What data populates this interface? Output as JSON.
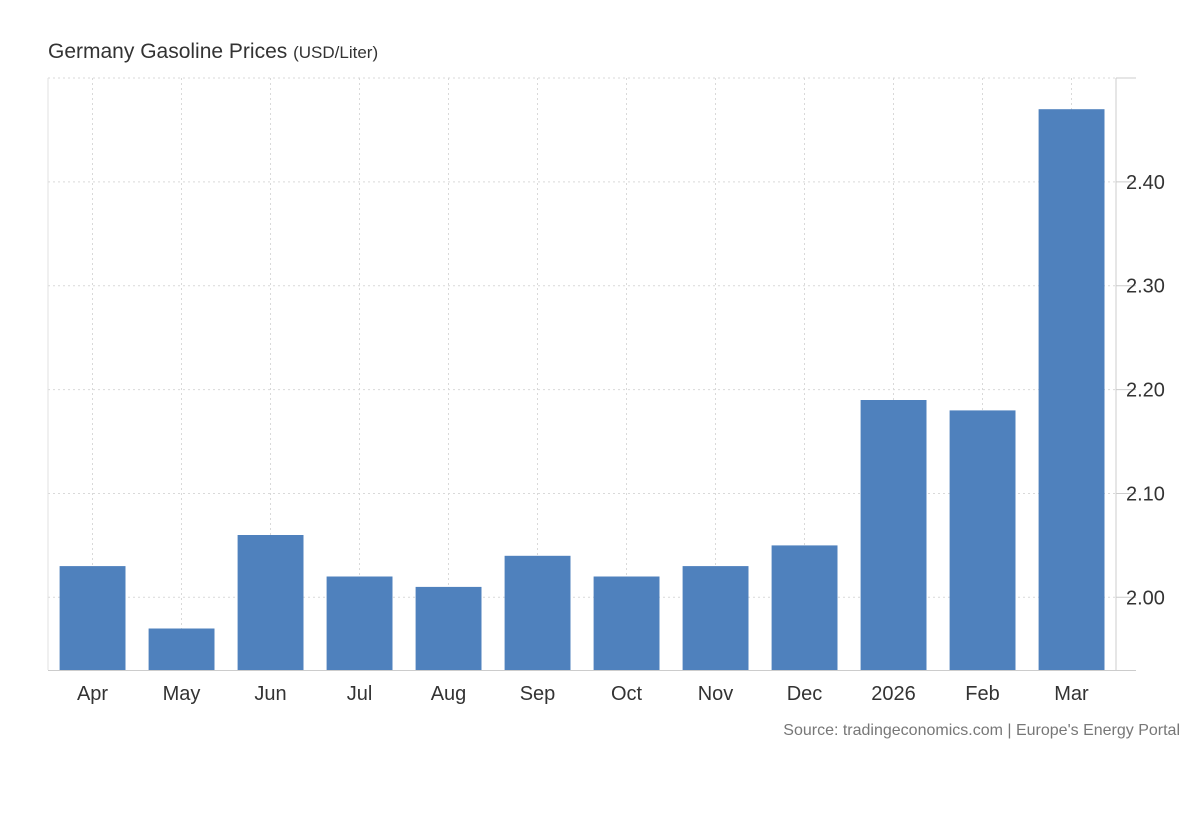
{
  "chart_data": {
    "type": "bar",
    "title": "Germany Gasoline Prices",
    "unit": "(USD/Liter)",
    "categories": [
      "Apr",
      "May",
      "Jun",
      "Jul",
      "Aug",
      "Sep",
      "Oct",
      "Nov",
      "Dec",
      "2026",
      "Feb",
      "Mar"
    ],
    "values": [
      2.03,
      1.97,
      2.06,
      2.02,
      2.01,
      2.04,
      2.02,
      2.03,
      2.05,
      2.19,
      2.18,
      2.47
    ],
    "ylim": [
      1.93,
      2.5
    ],
    "yticks": [
      2.0,
      2.1,
      2.2,
      2.3,
      2.4
    ],
    "ytick_labels": [
      "2.00",
      "2.10",
      "2.20",
      "2.30",
      "2.40"
    ],
    "y_axis_position": "right",
    "grid": true,
    "bar_color": "#4f81bd",
    "source": "Source: tradingeconomics.com | Europe's Energy Portal"
  }
}
